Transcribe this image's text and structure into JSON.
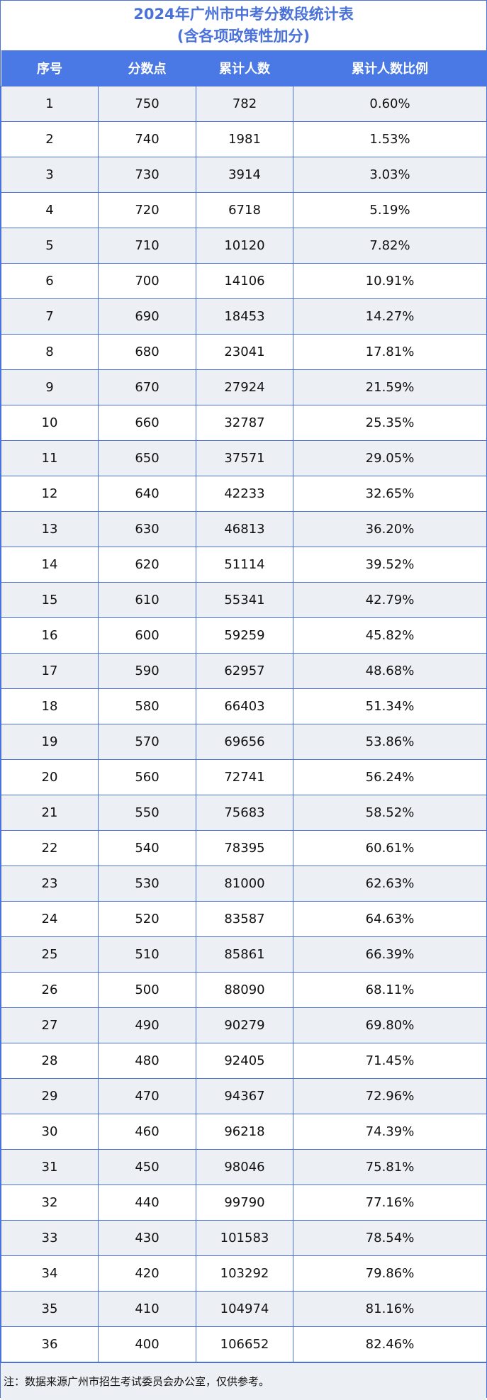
{
  "title": {
    "line1": "2024年广州市中考分数段统计表",
    "line2": "(含各项政策性加分)"
  },
  "colors": {
    "accent": "#4a72d8",
    "header_bg": "#4a78e4",
    "stripe": "#eceff3"
  },
  "table": {
    "headers": [
      "序号",
      "分数点",
      "累计人数",
      "累计人数比例"
    ],
    "rows": [
      [
        "1",
        "750",
        "782",
        "0.60%"
      ],
      [
        "2",
        "740",
        "1981",
        "1.53%"
      ],
      [
        "3",
        "730",
        "3914",
        "3.03%"
      ],
      [
        "4",
        "720",
        "6718",
        "5.19%"
      ],
      [
        "5",
        "710",
        "10120",
        "7.82%"
      ],
      [
        "6",
        "700",
        "14106",
        "10.91%"
      ],
      [
        "7",
        "690",
        "18453",
        "14.27%"
      ],
      [
        "8",
        "680",
        "23041",
        "17.81%"
      ],
      [
        "9",
        "670",
        "27924",
        "21.59%"
      ],
      [
        "10",
        "660",
        "32787",
        "25.35%"
      ],
      [
        "11",
        "650",
        "37571",
        "29.05%"
      ],
      [
        "12",
        "640",
        "42233",
        "32.65%"
      ],
      [
        "13",
        "630",
        "46813",
        "36.20%"
      ],
      [
        "14",
        "620",
        "51114",
        "39.52%"
      ],
      [
        "15",
        "610",
        "55341",
        "42.79%"
      ],
      [
        "16",
        "600",
        "59259",
        "45.82%"
      ],
      [
        "17",
        "590",
        "62957",
        "48.68%"
      ],
      [
        "18",
        "580",
        "66403",
        "51.34%"
      ],
      [
        "19",
        "570",
        "69656",
        "53.86%"
      ],
      [
        "20",
        "560",
        "72741",
        "56.24%"
      ],
      [
        "21",
        "550",
        "75683",
        "58.52%"
      ],
      [
        "22",
        "540",
        "78395",
        "60.61%"
      ],
      [
        "23",
        "530",
        "81000",
        "62.63%"
      ],
      [
        "24",
        "520",
        "83587",
        "64.63%"
      ],
      [
        "25",
        "510",
        "85861",
        "66.39%"
      ],
      [
        "26",
        "500",
        "88090",
        "68.11%"
      ],
      [
        "27",
        "490",
        "90279",
        "69.80%"
      ],
      [
        "28",
        "480",
        "92405",
        "71.45%"
      ],
      [
        "29",
        "470",
        "94367",
        "72.96%"
      ],
      [
        "30",
        "460",
        "96218",
        "74.39%"
      ],
      [
        "31",
        "450",
        "98046",
        "75.81%"
      ],
      [
        "32",
        "440",
        "99790",
        "77.16%"
      ],
      [
        "33",
        "430",
        "101583",
        "78.54%"
      ],
      [
        "34",
        "420",
        "103292",
        "79.86%"
      ],
      [
        "35",
        "410",
        "104974",
        "81.16%"
      ],
      [
        "36",
        "400",
        "106652",
        "82.46%"
      ]
    ]
  },
  "note": "注：数据来源广州市招生考试委员会办公室，仅供参考。"
}
